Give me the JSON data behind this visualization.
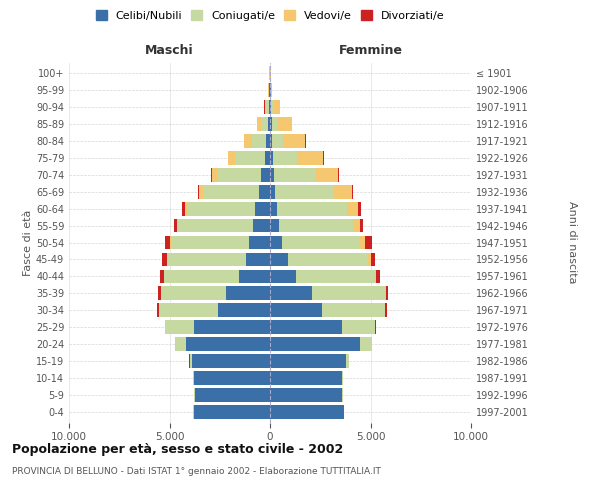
{
  "age_groups": [
    "0-4",
    "5-9",
    "10-14",
    "15-19",
    "20-24",
    "25-29",
    "30-34",
    "35-39",
    "40-44",
    "45-49",
    "50-54",
    "55-59",
    "60-64",
    "65-69",
    "70-74",
    "75-79",
    "80-84",
    "85-89",
    "90-94",
    "95-99",
    "100+"
  ],
  "birth_years": [
    "1997-2001",
    "1992-1996",
    "1987-1991",
    "1982-1986",
    "1977-1981",
    "1972-1976",
    "1967-1971",
    "1962-1966",
    "1957-1961",
    "1952-1956",
    "1947-1951",
    "1942-1946",
    "1937-1941",
    "1932-1936",
    "1927-1931",
    "1922-1926",
    "1917-1921",
    "1912-1916",
    "1907-1911",
    "1902-1906",
    "≤ 1901"
  ],
  "male_celibi": [
    3800,
    3750,
    3800,
    3900,
    4200,
    3800,
    2600,
    2200,
    1550,
    1200,
    1050,
    870,
    730,
    530,
    430,
    270,
    180,
    100,
    60,
    30,
    10
  ],
  "male_coniugati": [
    10,
    10,
    30,
    100,
    500,
    1400,
    2900,
    3200,
    3700,
    3900,
    3900,
    3700,
    3400,
    2800,
    2200,
    1450,
    700,
    350,
    130,
    30,
    10
  ],
  "male_vedovi": [
    0,
    0,
    0,
    0,
    5,
    5,
    10,
    15,
    20,
    30,
    50,
    60,
    100,
    200,
    250,
    350,
    400,
    200,
    80,
    15,
    5
  ],
  "male_divorziati": [
    0,
    0,
    0,
    5,
    10,
    40,
    100,
    180,
    210,
    220,
    230,
    150,
    130,
    60,
    40,
    20,
    15,
    10,
    5,
    0,
    0
  ],
  "female_celibi": [
    3700,
    3600,
    3600,
    3800,
    4500,
    3600,
    2600,
    2100,
    1300,
    900,
    600,
    430,
    350,
    260,
    200,
    140,
    100,
    80,
    60,
    30,
    10
  ],
  "female_coniugati": [
    5,
    10,
    30,
    120,
    550,
    1600,
    3100,
    3600,
    3900,
    4000,
    3900,
    3700,
    3500,
    2900,
    2100,
    1200,
    550,
    300,
    130,
    30,
    10
  ],
  "female_vedovi": [
    0,
    0,
    0,
    5,
    10,
    15,
    30,
    50,
    70,
    100,
    250,
    350,
    550,
    900,
    1100,
    1300,
    1100,
    700,
    300,
    50,
    10
  ],
  "female_divorziati": [
    0,
    0,
    0,
    10,
    20,
    50,
    100,
    130,
    200,
    200,
    300,
    150,
    130,
    70,
    50,
    30,
    20,
    10,
    5,
    0,
    0
  ],
  "colors": {
    "celibi": "#3a6fa8",
    "coniugati": "#c5d9a0",
    "vedovi": "#f5c76e",
    "divorziati": "#cc2222"
  },
  "title_main": "Popolazione per età, sesso e stato civile - 2002",
  "title_sub": "PROVINCIA DI BELLUNO - Dati ISTAT 1° gennaio 2002 - Elaborazione TUTTITALIA.IT",
  "xlabel_left": "Maschi",
  "xlabel_right": "Femmine",
  "ylabel_left": "Fasce di età",
  "ylabel_right": "Anni di nascita",
  "xlim": 10000,
  "legend_labels": [
    "Celibi/Nubili",
    "Coniugati/e",
    "Vedovi/e",
    "Divorziati/e"
  ],
  "bg_color": "#ffffff",
  "grid_color": "#cccccc"
}
